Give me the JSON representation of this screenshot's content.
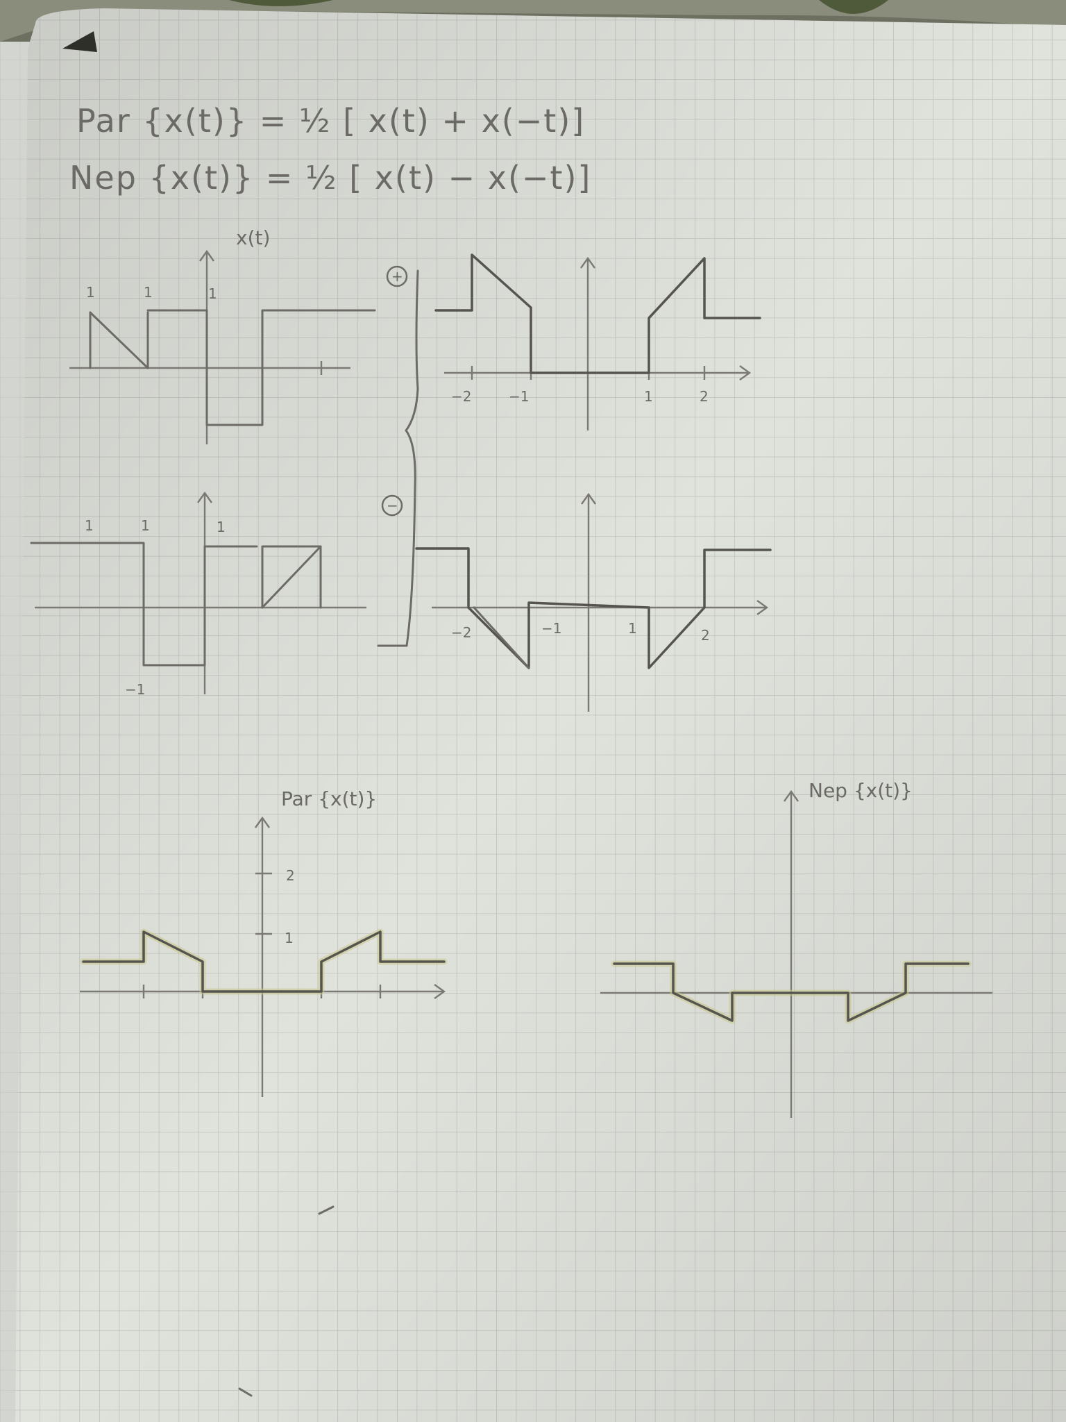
{
  "formulas": {
    "even": "Par {x(t)} = ½ [ x(t) + x(−t)]",
    "odd": "Nep {x(t)} = ½ [ x(t) − x(−t)]"
  },
  "plus_sign": "+",
  "minus_sign": "−",
  "graphs": {
    "x_t": {
      "title": "x(t)",
      "labels": [
        "1",
        "1",
        "1"
      ]
    },
    "x_plus_sym": {
      "labels": [
        "−2",
        "−1",
        "1",
        "2"
      ]
    },
    "x_neg_t": {
      "labels": [
        "1",
        "1",
        "1",
        "−1"
      ]
    },
    "x_minus_sym": {
      "labels": [
        "−2",
        "−1",
        "1",
        "2"
      ]
    },
    "par": {
      "title": "Par {x(t)}",
      "labels": [
        "2",
        "1"
      ]
    },
    "nep": {
      "title": "Nep {x(t)}"
    }
  },
  "chart_data": [
    {
      "type": "line",
      "title": "x(t)",
      "x": [
        -2,
        -1,
        -1,
        0,
        0,
        1,
        1,
        3
      ],
      "y": [
        1,
        0,
        1,
        1,
        -1,
        -1,
        1,
        1
      ],
      "note_extra_segments": [
        {
          "x": [
            -2,
            -2
          ],
          "y": [
            0,
            1
          ]
        },
        {
          "x": [
            -1,
            -1
          ],
          "y": [
            0,
            1
          ]
        }
      ]
    },
    {
      "type": "line",
      "x": [
        -2.6,
        -2,
        -2,
        -1,
        -1,
        1,
        1,
        2,
        2,
        3
      ],
      "y": [
        1,
        1,
        2,
        1,
        0,
        0,
        1,
        2,
        1,
        1
      ]
    },
    {
      "type": "line",
      "x": [
        -3,
        -1,
        -1,
        0,
        0,
        1,
        1,
        2,
        2,
        1,
        1,
        2.5
      ],
      "y": [
        1,
        1,
        -1,
        -1,
        1,
        1,
        0,
        1,
        0,
        0,
        0,
        0
      ]
    },
    {
      "type": "line",
      "x": [
        -3,
        -2,
        -2,
        -1,
        -1,
        1,
        1,
        2,
        2,
        3
      ],
      "y": [
        1,
        1,
        0,
        -1,
        0,
        0,
        -1,
        0,
        1,
        1
      ]
    },
    {
      "type": "line",
      "title": "Par {x(t)}",
      "x": [
        -3,
        -2,
        -2,
        -1,
        -1,
        1,
        1,
        2,
        2,
        3
      ],
      "y": [
        0.5,
        0.5,
        1,
        0.5,
        0,
        0,
        0.5,
        1,
        0.5,
        0.5
      ],
      "yticks": [
        1,
        2
      ]
    },
    {
      "type": "line",
      "title": "Nep {x(t)}",
      "x": [
        -3,
        -2,
        -2,
        -1,
        -1,
        1,
        1,
        2,
        2,
        3
      ],
      "y": [
        0.5,
        0.5,
        0,
        -0.5,
        0,
        0,
        -0.5,
        0,
        0.5,
        0.5
      ]
    }
  ]
}
